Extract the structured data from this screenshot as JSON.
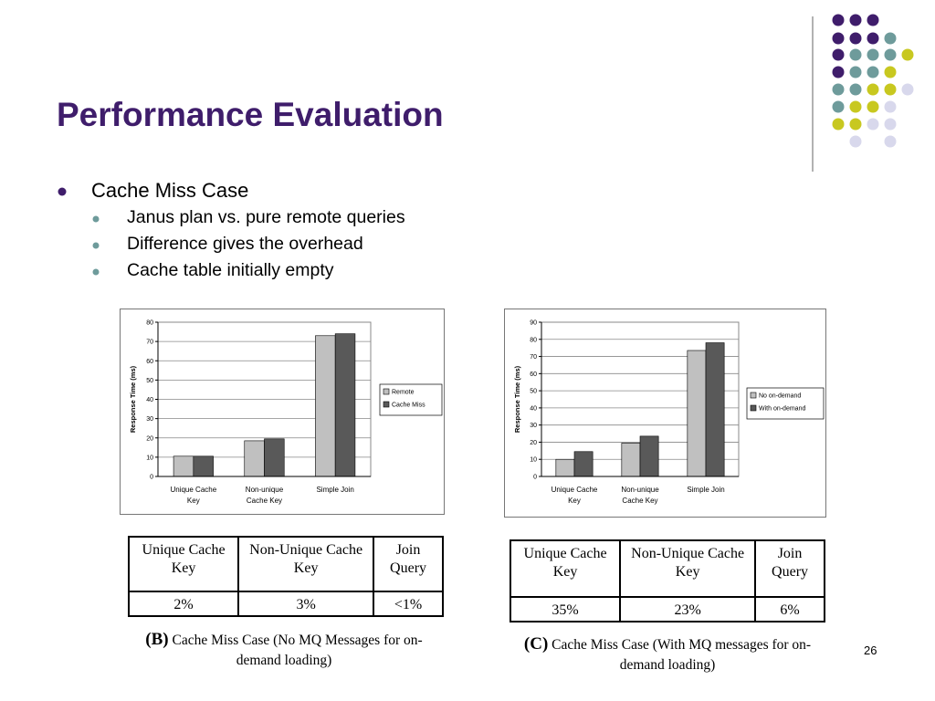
{
  "title": "Performance Evaluation",
  "bullets": [
    {
      "text": "Cache Miss Case",
      "children": [
        "Janus plan vs. pure remote queries",
        "Difference gives the overhead",
        "Cache table initially empty"
      ]
    }
  ],
  "chart_data": [
    {
      "type": "bar",
      "y_label": "Response Time (ms)",
      "categories": [
        "Unique Cache Key",
        "Non-unique Cache Key",
        "Simple Join"
      ],
      "series": [
        {
          "name": "Remote",
          "color": "#c0c0c0",
          "values": [
            10.5,
            18.5,
            73
          ]
        },
        {
          "name": "Cache Miss",
          "color": "#595959",
          "values": [
            10.5,
            19.5,
            74
          ]
        }
      ],
      "ylim": [
        0,
        80
      ],
      "yticks": [
        0,
        10,
        20,
        30,
        40,
        50,
        60,
        70,
        80
      ],
      "grid": true,
      "legend": "right"
    },
    {
      "type": "bar",
      "y_label": "Response Time (ms)",
      "categories": [
        "Unique Cache Key",
        "Non-unique Cache Key",
        "Simple Join"
      ],
      "series": [
        {
          "name": "No on-demand",
          "color": "#c0c0c0",
          "values": [
            10,
            19.5,
            73.5
          ]
        },
        {
          "name": "With on-demand",
          "color": "#595959",
          "values": [
            14.5,
            23.5,
            78
          ]
        }
      ],
      "ylim": [
        0,
        90
      ],
      "yticks": [
        0,
        10,
        20,
        30,
        40,
        50,
        60,
        70,
        80,
        90
      ],
      "grid": true,
      "legend": "right"
    }
  ],
  "tables": [
    {
      "header": [
        "Unique Cache Key",
        "Non-Unique Cache Key",
        "Join Query"
      ],
      "rows": [
        [
          "2%",
          "3%",
          "<1%"
        ]
      ],
      "caption": {
        "label": "(B)",
        "text": "Cache Miss Case (No MQ Messages for on-demand loading)"
      }
    },
    {
      "header": [
        "Unique Cache Key",
        "Non-Unique Cache Key",
        "Join Query"
      ],
      "rows": [
        [
          "35%",
          "23%",
          "6%"
        ]
      ],
      "caption": {
        "label": "(C)",
        "text": "Cache Miss Case (With MQ messages for on-demand loading)"
      }
    }
  ],
  "page_number": "26"
}
